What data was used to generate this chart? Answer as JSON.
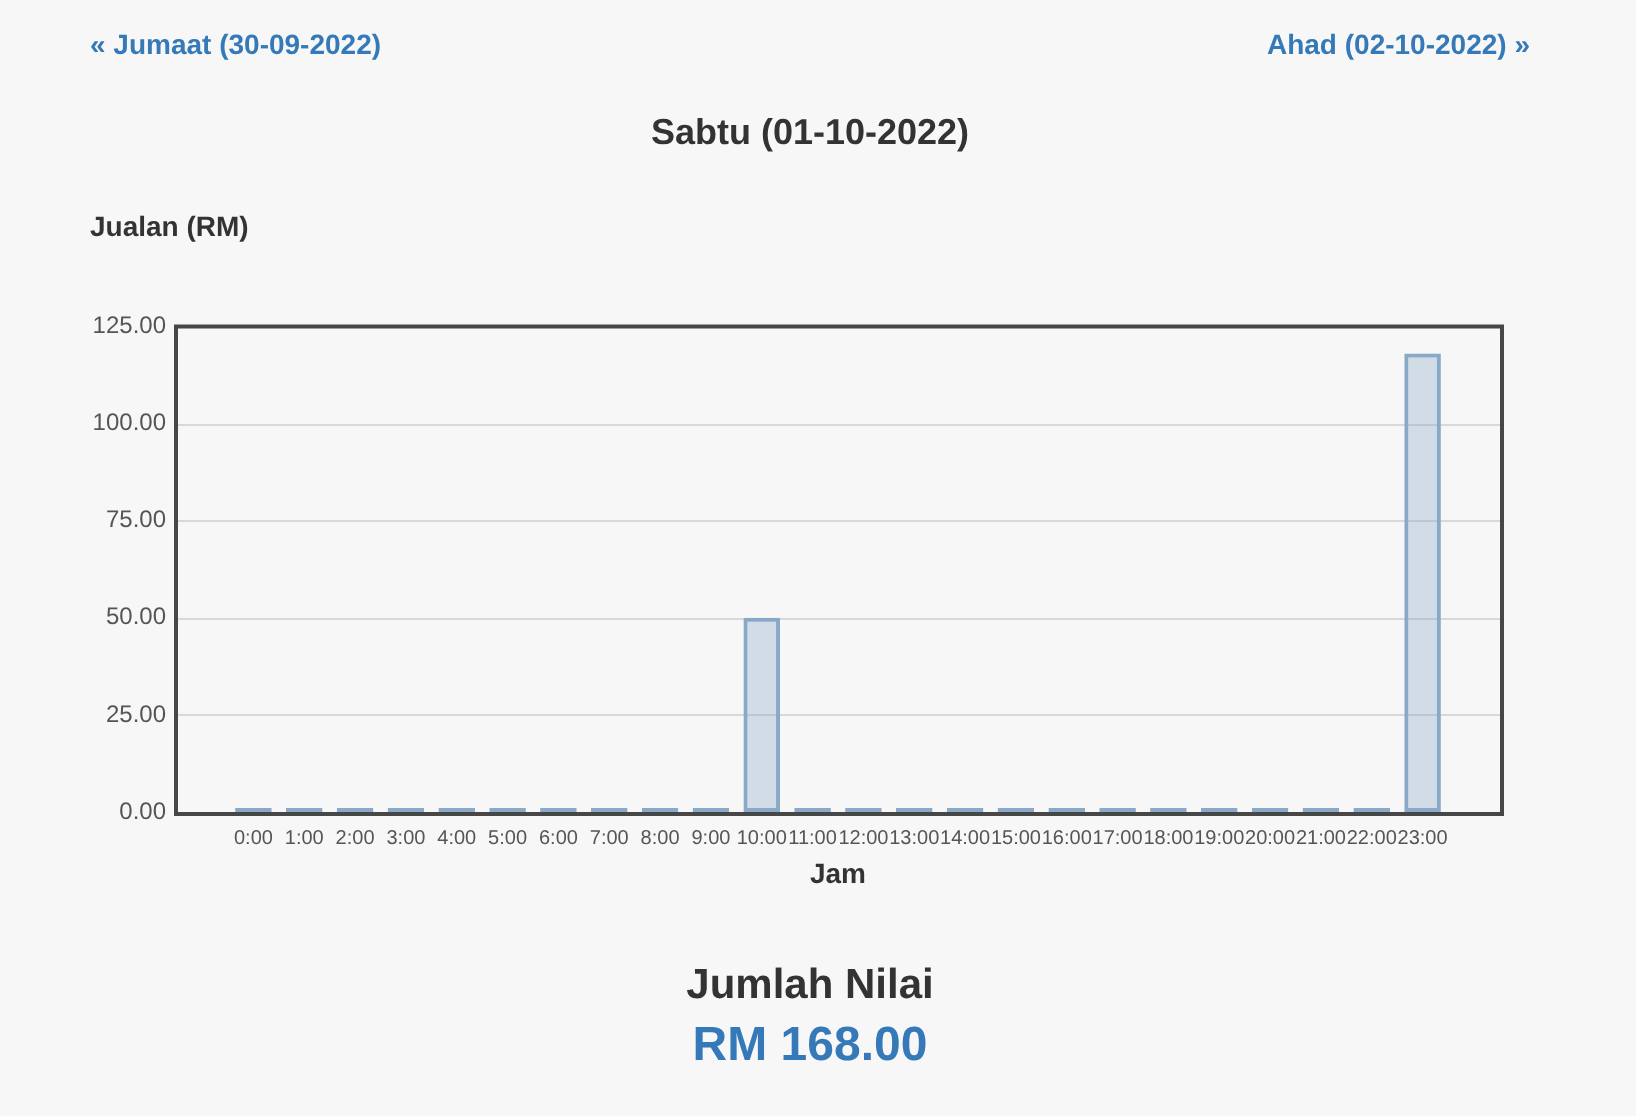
{
  "chart_data": {
    "type": "bar",
    "title": "Sabtu (01-10-2022)",
    "xlabel": "Jam",
    "ylabel": "Jualan (RM)",
    "categories": [
      "0:00",
      "1:00",
      "2:00",
      "3:00",
      "4:00",
      "5:00",
      "6:00",
      "7:00",
      "8:00",
      "9:00",
      "10:00",
      "11:00",
      "12:00",
      "13:00",
      "14:00",
      "15:00",
      "16:00",
      "17:00",
      "18:00",
      "19:00",
      "20:00",
      "21:00",
      "22:00",
      "23:00"
    ],
    "values": [
      0,
      0,
      0,
      0,
      0,
      0,
      0,
      0,
      0,
      0,
      50,
      0,
      0,
      0,
      0,
      0,
      0,
      0,
      0,
      0,
      0,
      0,
      0,
      118
    ],
    "color": "#8aa9c6",
    "ylim": [
      0,
      125
    ],
    "yticks": [
      {
        "value": 0,
        "label": "0.00"
      },
      {
        "value": 25,
        "label": "25.00"
      },
      {
        "value": 50,
        "label": "50.00"
      },
      {
        "value": 75,
        "label": "75.00"
      },
      {
        "value": 100,
        "label": "100.00"
      },
      {
        "value": 125,
        "label": "125.00"
      }
    ],
    "grid": "y",
    "annotations": [
      "« Jumaat (30-09-2022)",
      "Ahad (02-10-2022) »",
      "Jumlah Nilai",
      "RM 168.00"
    ]
  }
}
